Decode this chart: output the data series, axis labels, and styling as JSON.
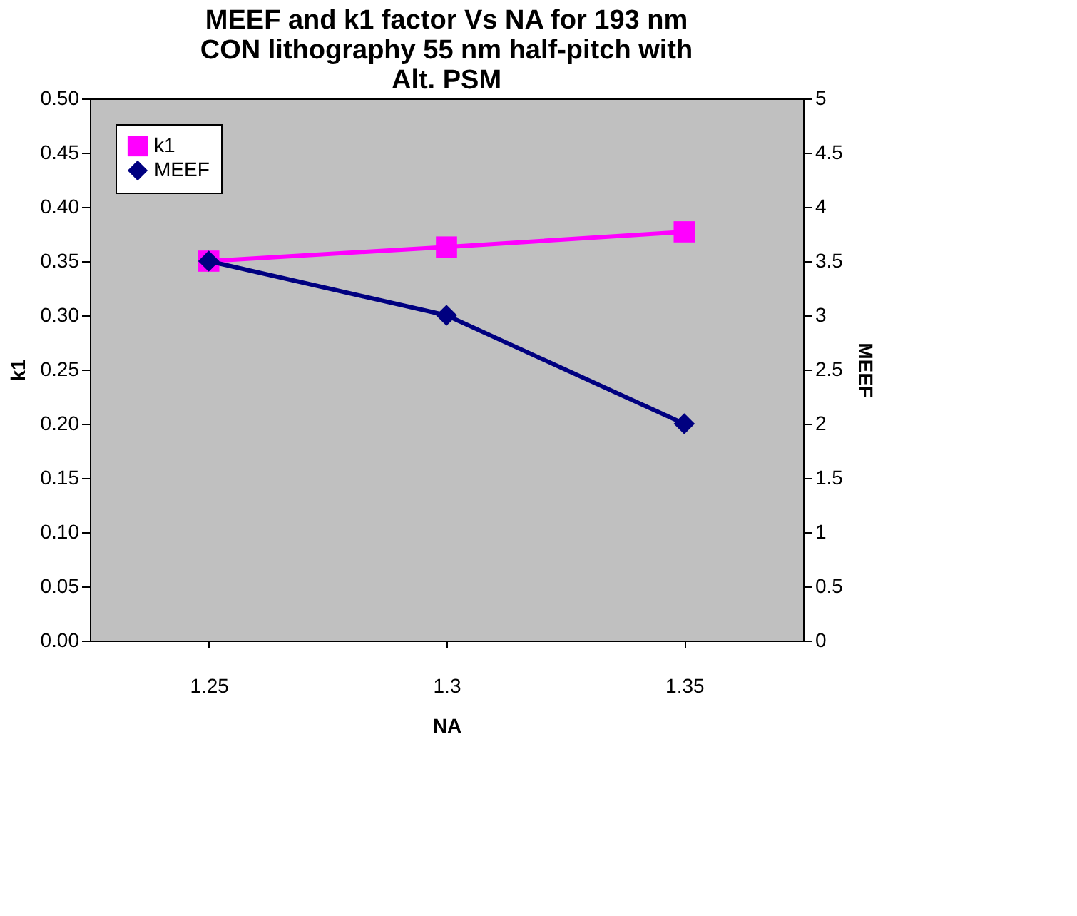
{
  "chart_data": {
    "type": "line",
    "title": "MEEF and k1 factor Vs NA for 193 nm CON lithography 55 nm half-pitch with Alt. PSM",
    "xlabel": "NA",
    "ylabel": "k1",
    "y2label": "MEEF",
    "categories": [
      "1.25",
      "1.3",
      "1.35"
    ],
    "series": [
      {
        "name": "k1",
        "color": "#ff00ff",
        "marker": "square",
        "values": [
          0.35,
          0.363,
          0.377
        ]
      },
      {
        "name": "MEEF",
        "color": "#000080",
        "marker": "diamond",
        "axis": "y2",
        "values": [
          3.5,
          3.0,
          2.0
        ]
      }
    ],
    "ylim": [
      0,
      0.5
    ],
    "yticks": [
      {
        "value": 0,
        "label": "0.00"
      },
      {
        "value": 0.05,
        "label": "0.05"
      },
      {
        "value": 0.1,
        "label": "0.10"
      },
      {
        "value": 0.15,
        "label": "0.15"
      },
      {
        "value": 0.2,
        "label": "0.20"
      },
      {
        "value": 0.25,
        "label": "0.25"
      },
      {
        "value": 0.3,
        "label": "0.30"
      },
      {
        "value": 0.35,
        "label": "0.35"
      },
      {
        "value": 0.4,
        "label": "0.40"
      },
      {
        "value": 0.45,
        "label": "0.45"
      },
      {
        "value": 0.5,
        "label": "0.50"
      }
    ],
    "y2lim": [
      0,
      5
    ],
    "y2ticks": [
      0,
      0.5,
      1,
      1.5,
      2,
      2.5,
      3,
      3.5,
      4,
      4.5,
      5
    ],
    "grid": false,
    "legend": "top left",
    "line_style": "solid"
  }
}
